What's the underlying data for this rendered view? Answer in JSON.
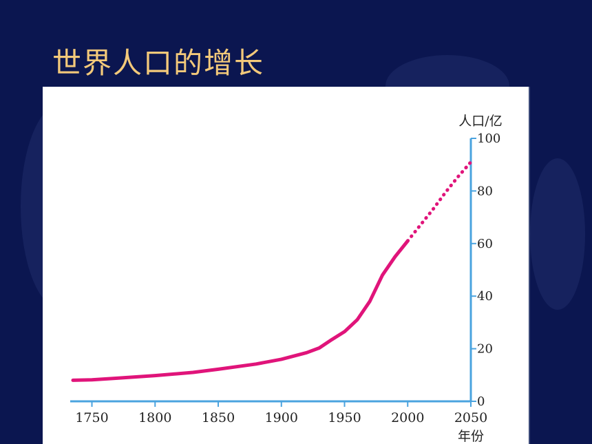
{
  "slide": {
    "title": "世界人口的增长"
  },
  "colors": {
    "background": "#0b1650",
    "title": "#f3c97a",
    "axis": "#4aa3df",
    "series": "#e0147a"
  },
  "chart_data": {
    "type": "line",
    "title": "",
    "xlabel": "年份",
    "ylabel": "人口/亿",
    "xlim": [
      1735,
      2050
    ],
    "ylim": [
      0,
      100
    ],
    "x_ticks": [
      1750,
      1800,
      1850,
      1900,
      1950,
      2000,
      2050
    ],
    "y_ticks": [
      0,
      20,
      40,
      60,
      80,
      100
    ],
    "grid": false,
    "legend": "none",
    "series": [
      {
        "style": "solid",
        "x": [
          1735,
          1750,
          1770,
          1800,
          1830,
          1850,
          1880,
          1900,
          1920,
          1930,
          1940,
          1950,
          1960,
          1970,
          1980,
          1990,
          2000
        ],
        "y": [
          8,
          8.2,
          8.8,
          9.8,
          11,
          12.2,
          14.2,
          16,
          18.5,
          20.3,
          23.5,
          26.5,
          31,
          38,
          48,
          55,
          61
        ]
      },
      {
        "style": "dotted",
        "x": [
          2000,
          2010,
          2020,
          2030,
          2040,
          2050
        ],
        "y": [
          61,
          67,
          73,
          79.5,
          85.5,
          91
        ]
      }
    ]
  }
}
